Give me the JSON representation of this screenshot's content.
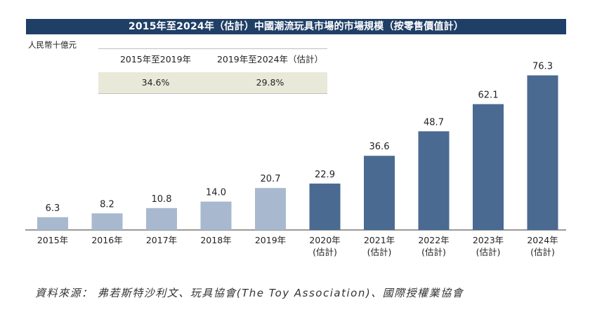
{
  "chart_data": {
    "type": "bar",
    "title": "2015年至2024年（估計）中國潮流玩具市場的市場規模（按零售價值計）",
    "ylabel": "人民幣十億元",
    "categories": [
      [
        "2015年"
      ],
      [
        "2016年"
      ],
      [
        "2017年"
      ],
      [
        "2018年"
      ],
      [
        "2019年"
      ],
      [
        "2020年",
        "(估計)"
      ],
      [
        "2021年",
        "(估計)"
      ],
      [
        "2022年",
        "(估計)"
      ],
      [
        "2023年",
        "(估計)"
      ],
      [
        "2024年",
        "(估計)"
      ]
    ],
    "values": [
      6.3,
      8.2,
      10.8,
      14.0,
      20.7,
      22.9,
      36.6,
      48.7,
      62.1,
      76.3
    ],
    "value_labels": [
      "6.3",
      "8.2",
      "10.8",
      "14.0",
      "20.7",
      "22.9",
      "36.6",
      "48.7",
      "62.1",
      "76.3"
    ],
    "colors": {
      "actual": "#a8b9cf",
      "estimate": "#4a6a91",
      "axis": "#333333"
    },
    "estimate_start_index": 5,
    "ylim": [
      0,
      80
    ],
    "grid": false
  },
  "cagr": {
    "headers": [
      "2015年至2019年",
      "2019年至2024年（估計）"
    ],
    "values": [
      "34.6%",
      "29.8%"
    ]
  },
  "source": "資料來源： 弗若斯特沙利文、玩具協會(The Toy Association)、國際授權業協會"
}
